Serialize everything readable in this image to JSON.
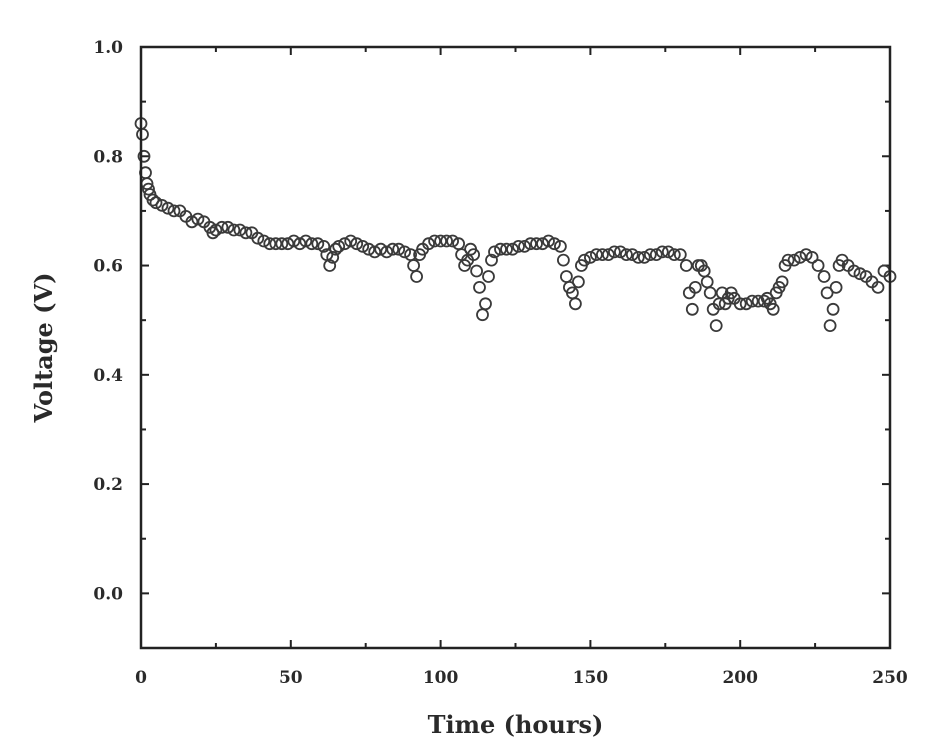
{
  "chart_data": {
    "type": "scatter",
    "title": "",
    "xlabel": "Time (hours)",
    "ylabel": "Voltage (V)",
    "xlim": [
      0,
      250
    ],
    "ylim": [
      -0.1,
      1.0
    ],
    "xticks": [
      0,
      50,
      100,
      150,
      200,
      250
    ],
    "xtick_labels": [
      "0",
      "50",
      "100",
      "150",
      "200",
      "250"
    ],
    "yticks": [
      0.0,
      0.2,
      0.4,
      0.6,
      0.8,
      1.0
    ],
    "ytick_labels": [
      "0.0",
      "0.2",
      "0.4",
      "0.6",
      "0.8",
      "1.0"
    ],
    "grid": false,
    "legend": "none",
    "marker": "open-circle",
    "colors": {
      "marker": "#3a3a3a",
      "axis": "#222222",
      "text": "#2a2a2a"
    },
    "series": [
      {
        "x": [
          0,
          0.5,
          1,
          1.5,
          2,
          2.5,
          3,
          4,
          5,
          7,
          9,
          11,
          13,
          15,
          17,
          19,
          21,
          23,
          24,
          25,
          27,
          29,
          31,
          33,
          35,
          37,
          39,
          41,
          43,
          45,
          47,
          49,
          51,
          53,
          55,
          57,
          59,
          61,
          62,
          63,
          64,
          65,
          66,
          68,
          70,
          72,
          74,
          76,
          78,
          80,
          82,
          84,
          86,
          88,
          90,
          91,
          92,
          93,
          94,
          96,
          98,
          100,
          102,
          104,
          106,
          107,
          108,
          109,
          110,
          111,
          112,
          113,
          114,
          115,
          116,
          117,
          118,
          120,
          122,
          124,
          126,
          128,
          130,
          132,
          134,
          136,
          138,
          140,
          141,
          142,
          143,
          144,
          145,
          146,
          147,
          148,
          150,
          152,
          154,
          156,
          158,
          160,
          162,
          164,
          166,
          168,
          170,
          172,
          174,
          176,
          178,
          180,
          182,
          183,
          184,
          185,
          186,
          187,
          188,
          189,
          190,
          191,
          192,
          193,
          194,
          195,
          196,
          197,
          198,
          200,
          202,
          204,
          206,
          208,
          209,
          210,
          211,
          212,
          213,
          214,
          215,
          216,
          218,
          220,
          222,
          224,
          226,
          228,
          229,
          230,
          231,
          232,
          233,
          234,
          236,
          238,
          240,
          242,
          244,
          246,
          248,
          250
        ],
        "y": [
          0.86,
          0.84,
          0.8,
          0.77,
          0.75,
          0.74,
          0.73,
          0.72,
          0.715,
          0.71,
          0.705,
          0.7,
          0.7,
          0.69,
          0.68,
          0.685,
          0.68,
          0.67,
          0.66,
          0.665,
          0.67,
          0.67,
          0.665,
          0.665,
          0.66,
          0.66,
          0.65,
          0.645,
          0.64,
          0.64,
          0.64,
          0.64,
          0.645,
          0.64,
          0.645,
          0.64,
          0.64,
          0.635,
          0.62,
          0.6,
          0.615,
          0.63,
          0.635,
          0.64,
          0.645,
          0.64,
          0.635,
          0.63,
          0.625,
          0.63,
          0.625,
          0.63,
          0.63,
          0.625,
          0.62,
          0.6,
          0.58,
          0.62,
          0.63,
          0.64,
          0.645,
          0.645,
          0.645,
          0.645,
          0.64,
          0.62,
          0.6,
          0.61,
          0.63,
          0.62,
          0.59,
          0.56,
          0.51,
          0.53,
          0.58,
          0.61,
          0.625,
          0.63,
          0.63,
          0.63,
          0.635,
          0.635,
          0.64,
          0.64,
          0.64,
          0.645,
          0.64,
          0.635,
          0.61,
          0.58,
          0.56,
          0.55,
          0.53,
          0.57,
          0.6,
          0.61,
          0.615,
          0.62,
          0.62,
          0.62,
          0.625,
          0.625,
          0.62,
          0.62,
          0.615,
          0.615,
          0.62,
          0.62,
          0.625,
          0.625,
          0.62,
          0.62,
          0.6,
          0.55,
          0.52,
          0.56,
          0.6,
          0.6,
          0.59,
          0.57,
          0.55,
          0.52,
          0.49,
          0.53,
          0.55,
          0.53,
          0.54,
          0.55,
          0.54,
          0.53,
          0.53,
          0.535,
          0.535,
          0.535,
          0.54,
          0.53,
          0.52,
          0.55,
          0.56,
          0.57,
          0.6,
          0.61,
          0.61,
          0.615,
          0.62,
          0.615,
          0.6,
          0.58,
          0.55,
          0.49,
          0.52,
          0.56,
          0.6,
          0.61,
          0.6,
          0.59,
          0.585,
          0.58,
          0.57,
          0.56,
          0.59,
          0.58
        ]
      }
    ]
  }
}
